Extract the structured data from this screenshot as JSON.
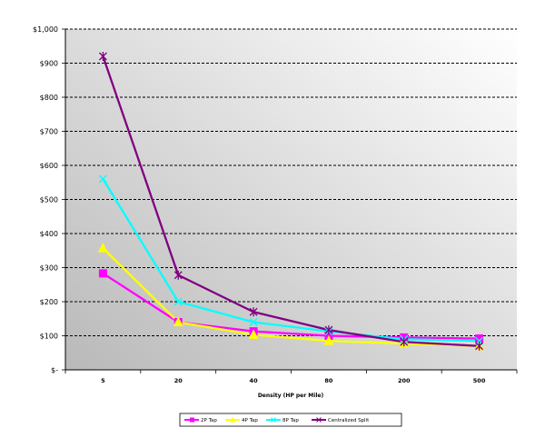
{
  "chart_data": {
    "type": "line",
    "title": "",
    "xlabel": "Density (HP per Mile)",
    "ylabel": "",
    "categories": [
      "5",
      "20",
      "40",
      "80",
      "200",
      "500"
    ],
    "yticks": [
      "$-",
      "$100",
      "$200",
      "$300",
      "$400",
      "$500",
      "$600",
      "$700",
      "$800",
      "$900",
      "$1,000"
    ],
    "ylim": [
      0,
      1000
    ],
    "grid": "horizontal dashed",
    "legend": "bottom",
    "series": [
      {
        "name": "2P Tap",
        "color": "#ff00ff",
        "marker": "square",
        "values": [
          283,
          140,
          113,
          100,
          95,
          92
        ]
      },
      {
        "name": "4P Tap",
        "color": "#ffff00",
        "marker": "triangle",
        "values": [
          357,
          140,
          103,
          85,
          77,
          70
        ]
      },
      {
        "name": "8P Tap",
        "color": "#00ffff",
        "marker": "x",
        "values": [
          560,
          200,
          140,
          113,
          90,
          85
        ]
      },
      {
        "name": "Centralized Split",
        "color": "#800080",
        "marker": "star",
        "values": [
          920,
          278,
          170,
          117,
          82,
          70
        ]
      }
    ]
  }
}
